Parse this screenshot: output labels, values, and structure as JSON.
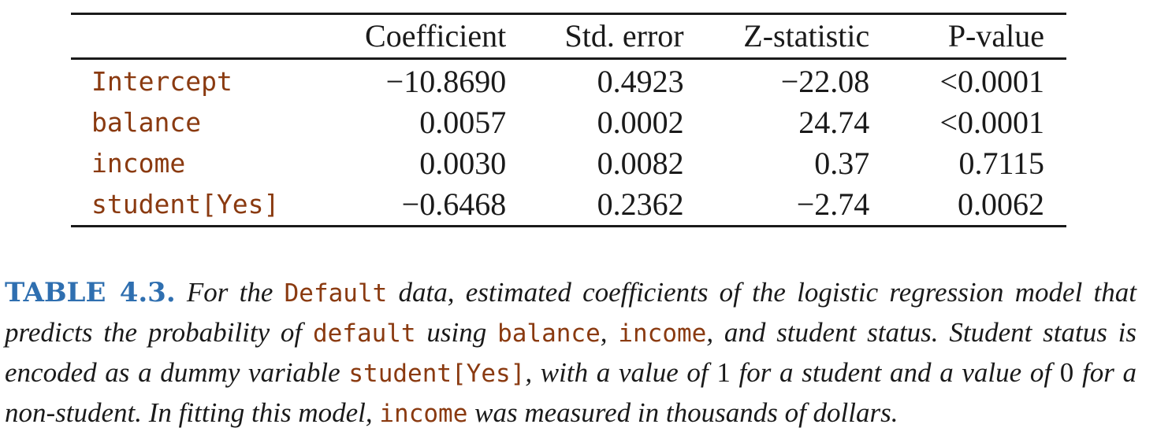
{
  "table": {
    "headers": [
      "",
      "Coefficient",
      "Std. error",
      "Z-statistic",
      "P-value"
    ],
    "rows": [
      {
        "var": "Intercept",
        "coef": "−10.8690",
        "se": "0.4923",
        "z": "−22.08",
        "p": "<0.0001"
      },
      {
        "var": "balance",
        "coef": "0.0057",
        "se": "0.0002",
        "z": "24.74",
        "p": "<0.0001"
      },
      {
        "var": "income",
        "coef": "0.0030",
        "se": "0.0082",
        "z": "0.37",
        "p": "0.7115"
      },
      {
        "var": "student[Yes]",
        "coef": "−0.6468",
        "se": "0.2362",
        "z": "−2.74",
        "p": "0.0062"
      }
    ]
  },
  "caption": {
    "label": "TABLE 4.3.",
    "t1": " For the ",
    "c1": "Default",
    "t2": " data, estimated coefficients of the logistic regression model that predicts the probability of ",
    "c2": "default",
    "t3": " using ",
    "c3": "balance",
    "t4": ", ",
    "c4": "income",
    "t5": ", and student status. Student status is encoded as a dummy variable ",
    "c5": "student[Yes]",
    "t6": ", with a value of ",
    "n1": "1",
    "t7": " for a student and a value of ",
    "n2": "0",
    "t8": " for a non-student. In fitting this model, ",
    "c6": "income",
    "t9": " was measured in thousands of dollars."
  },
  "colors": {
    "code": "#8a3a10",
    "label": "#2f6fb0",
    "rule": "#1a1a1a"
  }
}
